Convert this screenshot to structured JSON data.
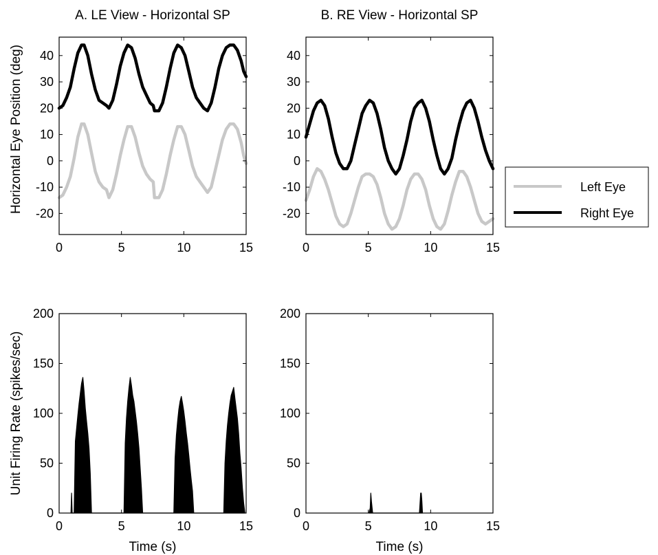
{
  "figure": {
    "legend": {
      "entries": [
        {
          "label": "Left Eye",
          "color": "#c8c8c8"
        },
        {
          "label": "Right Eye",
          "color": "#000000"
        }
      ]
    }
  },
  "chart_data": [
    {
      "id": "A_eye",
      "type": "line",
      "title": "A. LE View - Horizontal SP",
      "xlabel": "",
      "ylabel": "Horizontal Eye Position (deg)",
      "xlim": [
        0,
        15
      ],
      "ylim": [
        -28,
        47
      ],
      "xticks": [
        0,
        5,
        10,
        15
      ],
      "yticks": [
        -20,
        -10,
        0,
        10,
        20,
        30,
        40
      ],
      "grid": false,
      "series": [
        {
          "name": "Right Eye",
          "color": "#000000",
          "x": [
            0,
            0.3,
            0.6,
            0.9,
            1.2,
            1.5,
            1.8,
            2.0,
            2.3,
            2.6,
            2.9,
            3.2,
            3.5,
            3.8,
            4.0,
            4.3,
            4.6,
            4.9,
            5.2,
            5.5,
            5.8,
            6.1,
            6.4,
            6.7,
            7.0,
            7.3,
            7.55,
            7.65,
            8.0,
            8.3,
            8.6,
            8.9,
            9.2,
            9.5,
            9.8,
            10.1,
            10.4,
            10.7,
            11.0,
            11.3,
            11.6,
            11.9,
            12.2,
            12.5,
            12.8,
            13.1,
            13.4,
            13.7,
            14.0,
            14.3,
            14.6,
            14.8,
            15.0
          ],
          "y": [
            20,
            21,
            24,
            28,
            35,
            41,
            44,
            44,
            40,
            33,
            27,
            23,
            22,
            21,
            20,
            23,
            29,
            36,
            41,
            44,
            43,
            39,
            33,
            28,
            25,
            22,
            21,
            19,
            19,
            22,
            28,
            35,
            41,
            44,
            43,
            40,
            34,
            28,
            24,
            22,
            20,
            19,
            22,
            28,
            35,
            40,
            43,
            44,
            44,
            42,
            38,
            34,
            32
          ]
        },
        {
          "name": "Left Eye",
          "color": "#c8c8c8",
          "x": [
            0,
            0.3,
            0.6,
            0.9,
            1.2,
            1.5,
            1.8,
            2.0,
            2.3,
            2.6,
            2.9,
            3.2,
            3.5,
            3.8,
            4.0,
            4.3,
            4.6,
            4.9,
            5.2,
            5.5,
            5.8,
            6.1,
            6.4,
            6.7,
            7.0,
            7.3,
            7.55,
            7.65,
            8.0,
            8.3,
            8.6,
            8.9,
            9.2,
            9.5,
            9.8,
            10.1,
            10.4,
            10.7,
            11.0,
            11.3,
            11.6,
            11.9,
            12.2,
            12.5,
            12.8,
            13.1,
            13.4,
            13.7,
            14.0,
            14.3,
            14.6,
            14.8,
            15.0
          ],
          "y": [
            -14,
            -13,
            -10,
            -6,
            1,
            9,
            14,
            14,
            10,
            3,
            -4,
            -8,
            -10,
            -11,
            -14,
            -11,
            -5,
            2,
            8,
            13,
            13,
            9,
            3,
            -2,
            -5,
            -7,
            -8,
            -14,
            -14,
            -11,
            -5,
            2,
            8,
            13,
            13,
            10,
            4,
            -2,
            -6,
            -8,
            -10,
            -12,
            -10,
            -4,
            2,
            8,
            12,
            14,
            14,
            12,
            7,
            2,
            -1
          ]
        }
      ]
    },
    {
      "id": "B_eye",
      "type": "line",
      "title": "B. RE View - Horizontal SP",
      "xlabel": "",
      "ylabel": "",
      "xlim": [
        0,
        15
      ],
      "ylim": [
        -28,
        47
      ],
      "xticks": [
        0,
        5,
        10,
        15
      ],
      "yticks": [
        -20,
        -10,
        0,
        10,
        20,
        30,
        40
      ],
      "grid": false,
      "series": [
        {
          "name": "Right Eye",
          "color": "#000000",
          "x": [
            0,
            0.3,
            0.6,
            0.9,
            1.2,
            1.5,
            1.8,
            2.1,
            2.4,
            2.7,
            3.0,
            3.3,
            3.6,
            3.9,
            4.2,
            4.5,
            4.8,
            5.1,
            5.4,
            5.7,
            6.0,
            6.3,
            6.6,
            6.9,
            7.2,
            7.5,
            7.8,
            8.1,
            8.4,
            8.7,
            9.0,
            9.3,
            9.6,
            9.9,
            10.2,
            10.5,
            10.8,
            11.1,
            11.4,
            11.7,
            12.0,
            12.3,
            12.6,
            12.9,
            13.2,
            13.5,
            13.8,
            14.1,
            14.4,
            14.7,
            15.0
          ],
          "y": [
            9,
            14,
            19,
            22,
            23,
            21,
            16,
            9,
            3,
            -1,
            -3,
            -3,
            0,
            6,
            12,
            18,
            21,
            23,
            22,
            18,
            12,
            5,
            0,
            -3,
            -5,
            -3,
            2,
            8,
            15,
            20,
            22,
            23,
            20,
            15,
            8,
            2,
            -3,
            -5,
            -3,
            1,
            8,
            14,
            19,
            22,
            23,
            20,
            15,
            9,
            4,
            0,
            -3
          ]
        },
        {
          "name": "Left Eye",
          "color": "#c8c8c8",
          "x": [
            0,
            0.3,
            0.6,
            0.9,
            1.2,
            1.5,
            1.8,
            2.1,
            2.4,
            2.7,
            3.0,
            3.3,
            3.6,
            3.9,
            4.2,
            4.5,
            4.8,
            5.1,
            5.4,
            5.7,
            6.0,
            6.3,
            6.6,
            6.9,
            7.2,
            7.5,
            7.8,
            8.1,
            8.4,
            8.7,
            9.0,
            9.3,
            9.6,
            9.9,
            10.2,
            10.5,
            10.8,
            11.1,
            11.4,
            11.7,
            12.0,
            12.3,
            12.6,
            12.9,
            13.2,
            13.5,
            13.8,
            14.1,
            14.4,
            14.7,
            15.0
          ],
          "y": [
            -15,
            -11,
            -6,
            -3,
            -4,
            -7,
            -11,
            -16,
            -21,
            -24,
            -25,
            -24,
            -20,
            -15,
            -10,
            -6,
            -5,
            -5,
            -6,
            -9,
            -14,
            -20,
            -24,
            -26,
            -25,
            -22,
            -17,
            -11,
            -7,
            -5,
            -5,
            -7,
            -11,
            -17,
            -22,
            -25,
            -26,
            -24,
            -19,
            -13,
            -8,
            -4,
            -4,
            -6,
            -10,
            -15,
            -20,
            -23,
            -24,
            -23,
            -22
          ]
        }
      ]
    },
    {
      "id": "A_rate",
      "type": "area",
      "title": "",
      "xlabel": "Time (s)",
      "ylabel": "Unit Firing Rate (spikes/sec)",
      "xlim": [
        0,
        15
      ],
      "ylim": [
        0,
        200
      ],
      "xticks": [
        0,
        5,
        10,
        15
      ],
      "yticks": [
        0,
        50,
        100,
        150,
        200
      ],
      "grid": false,
      "series": [
        {
          "name": "",
          "color": "#000000",
          "x": [
            0.95,
            1.0,
            1.05,
            1.2,
            1.3,
            1.4,
            1.5,
            1.6,
            1.7,
            1.8,
            1.9,
            2.0,
            2.1,
            2.2,
            2.3,
            2.4,
            2.5,
            2.6,
            5.2,
            5.3,
            5.4,
            5.5,
            5.6,
            5.7,
            5.8,
            5.9,
            6.0,
            6.1,
            6.2,
            6.3,
            6.4,
            6.5,
            6.6,
            6.7,
            9.2,
            9.3,
            9.4,
            9.5,
            9.6,
            9.7,
            9.8,
            9.9,
            10.0,
            10.1,
            10.2,
            10.3,
            10.4,
            10.5,
            10.6,
            10.7,
            10.8,
            13.2,
            13.3,
            13.4,
            13.5,
            13.6,
            13.7,
            13.8,
            13.9,
            14.0,
            14.1,
            14.2,
            14.3,
            14.4,
            14.5,
            14.6,
            14.7,
            14.8,
            14.9
          ],
          "y": [
            0,
            20,
            0,
            0,
            72,
            85,
            98,
            110,
            120,
            130,
            136,
            122,
            105,
            92,
            80,
            65,
            40,
            0,
            0,
            70,
            95,
            112,
            125,
            136,
            128,
            118,
            112,
            102,
            92,
            80,
            65,
            45,
            25,
            0,
            0,
            55,
            78,
            92,
            104,
            112,
            117,
            110,
            102,
            92,
            80,
            70,
            58,
            45,
            33,
            22,
            0,
            0,
            50,
            72,
            88,
            100,
            110,
            118,
            122,
            126,
            115,
            105,
            95,
            80,
            60,
            45,
            25,
            10,
            0
          ]
        }
      ]
    },
    {
      "id": "B_rate",
      "type": "area",
      "title": "",
      "xlabel": "Time (s)",
      "ylabel": "",
      "xlim": [
        0,
        15
      ],
      "ylim": [
        0,
        200
      ],
      "xticks": [
        0,
        5,
        10,
        15
      ],
      "yticks": [
        0,
        50,
        100,
        150,
        200
      ],
      "grid": false,
      "series": [
        {
          "name": "",
          "color": "#000000",
          "x": [
            5.05,
            5.15,
            5.2,
            5.25,
            5.35,
            9.1,
            9.15,
            9.2,
            9.25,
            9.3,
            9.35
          ],
          "y": [
            0,
            5,
            20,
            12,
            0,
            0,
            10,
            20,
            20,
            12,
            0
          ]
        }
      ]
    }
  ]
}
